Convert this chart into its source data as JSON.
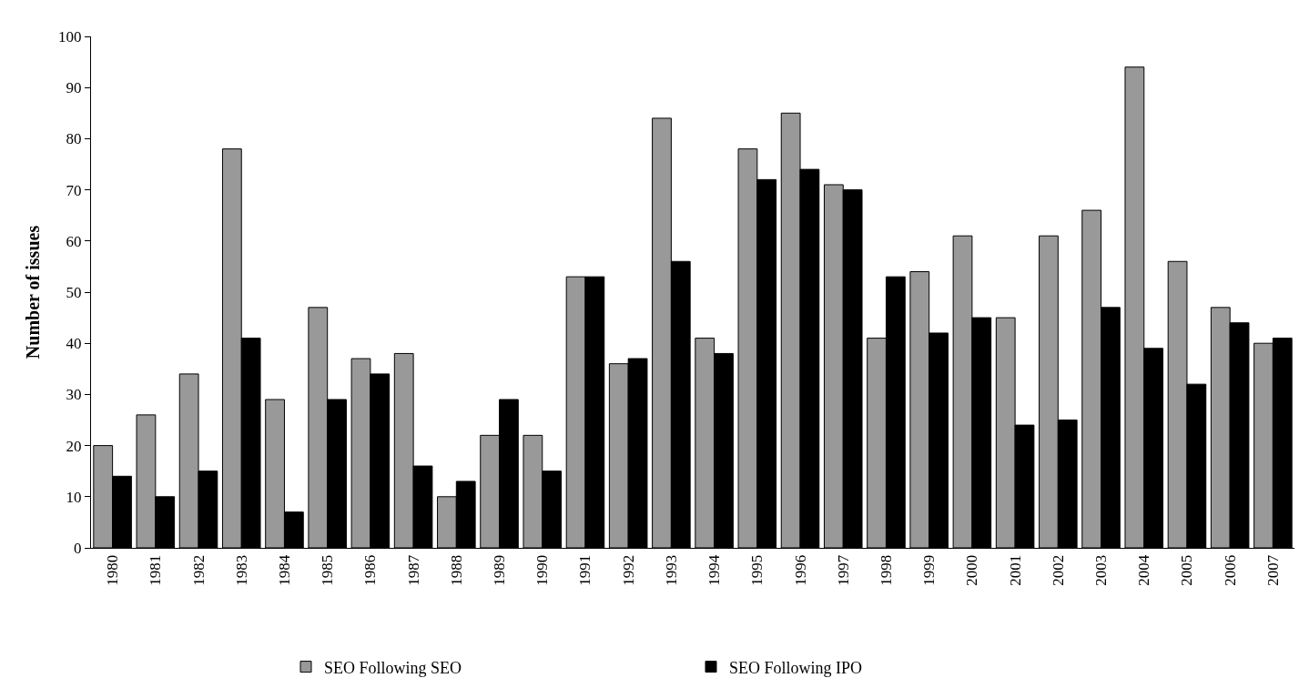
{
  "chart_data": {
    "type": "bar",
    "ylabel": "Number of issues",
    "categories": [
      "1980",
      "1981",
      "1982",
      "1983",
      "1984",
      "1985",
      "1986",
      "1987",
      "1988",
      "1989",
      "1990",
      "1991",
      "1992",
      "1993",
      "1994",
      "1995",
      "1996",
      "1997",
      "1998",
      "1999",
      "2000",
      "2001",
      "2002",
      "2003",
      "2004",
      "2005",
      "2006",
      "2007"
    ],
    "series": [
      {
        "name": "SEO Following SEO",
        "color": "#999999",
        "values": [
          20,
          26,
          34,
          78,
          29,
          47,
          37,
          38,
          10,
          22,
          22,
          53,
          36,
          84,
          41,
          78,
          85,
          71,
          41,
          54,
          61,
          45,
          61,
          66,
          94,
          56,
          47,
          40
        ]
      },
      {
        "name": "SEO Following IPO",
        "color": "#000000",
        "values": [
          14,
          10,
          15,
          41,
          7,
          29,
          34,
          16,
          13,
          29,
          15,
          53,
          37,
          56,
          38,
          72,
          74,
          70,
          53,
          42,
          45,
          24,
          25,
          47,
          39,
          32,
          44,
          41
        ]
      }
    ],
    "ylim": [
      0,
      100
    ],
    "yticks": [
      0,
      10,
      20,
      30,
      40,
      50,
      60,
      70,
      80,
      90,
      100
    ],
    "grid": false,
    "legend": "bottom"
  }
}
